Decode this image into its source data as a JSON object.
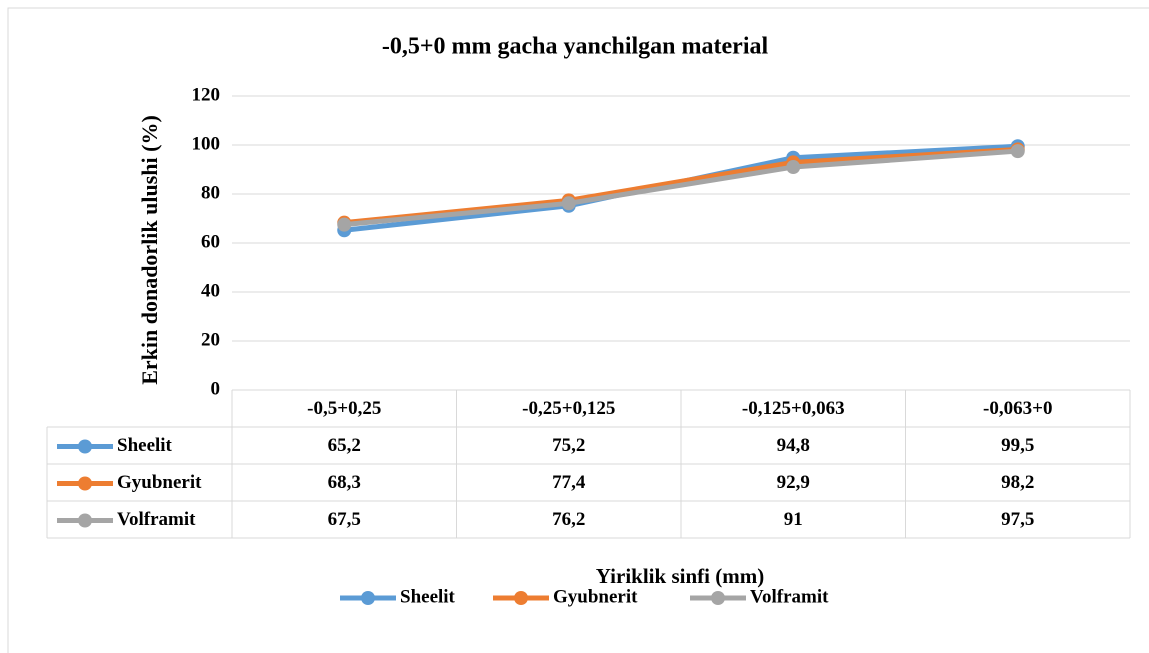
{
  "chart_data": {
    "type": "line",
    "title": "-0,5+0 mm gacha yanchilgan material",
    "x_label": "Yiriklik sinfi (mm)",
    "y_label": "Erkin donadorlik ulushi (%)",
    "categories": [
      "-0,5+0,25",
      "-0,25+0,125",
      "-0,125+0,063",
      "-0,063+0"
    ],
    "series": [
      {
        "name": "Sheelit",
        "color": "#5b9bd5",
        "values": [
          65.2,
          75.2,
          94.8,
          99.5
        ],
        "value_labels": [
          "65,2",
          "75,2",
          "94,8",
          "99,5"
        ]
      },
      {
        "name": "Gyubnerit",
        "color": "#ed7d31",
        "values": [
          68.3,
          77.4,
          92.9,
          98.2
        ],
        "value_labels": [
          "68,3",
          "77,4",
          "92,9",
          "98,2"
        ]
      },
      {
        "name": "Volframit",
        "color": "#a5a5a5",
        "values": [
          67.5,
          76.2,
          91,
          97.5
        ],
        "value_labels": [
          "67,5",
          "76,2",
          "91",
          "97,5"
        ]
      }
    ],
    "ylim": [
      0,
      120
    ],
    "yticks": [
      0,
      20,
      40,
      60,
      80,
      100,
      120
    ],
    "grid": true,
    "legend": "bottom"
  }
}
